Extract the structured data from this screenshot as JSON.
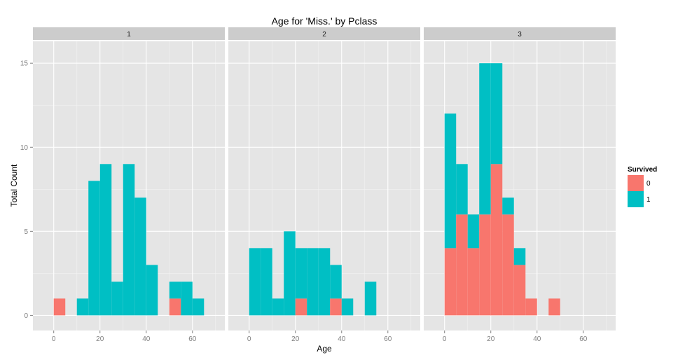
{
  "chart_data": {
    "type": "bar",
    "stacked": true,
    "title": "Age for 'Miss.' by Pclass",
    "xlabel": "Age",
    "ylabel": "Total Count",
    "xlim": [
      -9,
      74
    ],
    "ylim": [
      -0.9,
      16.3
    ],
    "xticks": [
      0,
      20,
      40,
      60
    ],
    "yticks": [
      0,
      5,
      10,
      15
    ],
    "bin_width": 5,
    "grid": true,
    "legend_position": "right",
    "legend": {
      "title": "Survived",
      "entries": [
        {
          "label": "0",
          "color": "#F8766D"
        },
        {
          "label": "1",
          "color": "#00BFC4"
        }
      ]
    },
    "panels": [
      {
        "label": "1",
        "bins": [
          {
            "start": 0,
            "died": 1,
            "survived": 0
          },
          {
            "start": 10,
            "died": 0,
            "survived": 1
          },
          {
            "start": 15,
            "died": 0,
            "survived": 8
          },
          {
            "start": 20,
            "died": 0,
            "survived": 9
          },
          {
            "start": 25,
            "died": 0,
            "survived": 2
          },
          {
            "start": 30,
            "died": 0,
            "survived": 9
          },
          {
            "start": 35,
            "died": 0,
            "survived": 7
          },
          {
            "start": 40,
            "died": 0,
            "survived": 3
          },
          {
            "start": 50,
            "died": 1,
            "survived": 1
          },
          {
            "start": 55,
            "died": 0,
            "survived": 2
          },
          {
            "start": 60,
            "died": 0,
            "survived": 1
          }
        ]
      },
      {
        "label": "2",
        "bins": [
          {
            "start": 0,
            "died": 0,
            "survived": 4
          },
          {
            "start": 5,
            "died": 0,
            "survived": 4
          },
          {
            "start": 10,
            "died": 0,
            "survived": 1
          },
          {
            "start": 15,
            "died": 0,
            "survived": 5
          },
          {
            "start": 20,
            "died": 1,
            "survived": 3
          },
          {
            "start": 25,
            "died": 0,
            "survived": 4
          },
          {
            "start": 30,
            "died": 0,
            "survived": 4
          },
          {
            "start": 35,
            "died": 1,
            "survived": 2
          },
          {
            "start": 40,
            "died": 0,
            "survived": 1
          },
          {
            "start": 50,
            "died": 0,
            "survived": 2
          }
        ]
      },
      {
        "label": "3",
        "bins": [
          {
            "start": 0,
            "died": 4,
            "survived": 8
          },
          {
            "start": 5,
            "died": 6,
            "survived": 3
          },
          {
            "start": 10,
            "died": 4,
            "survived": 2
          },
          {
            "start": 15,
            "died": 6,
            "survived": 9
          },
          {
            "start": 20,
            "died": 9,
            "survived": 6
          },
          {
            "start": 25,
            "died": 6,
            "survived": 1
          },
          {
            "start": 30,
            "died": 3,
            "survived": 1
          },
          {
            "start": 35,
            "died": 1,
            "survived": 0
          },
          {
            "start": 45,
            "died": 1,
            "survived": 0
          }
        ]
      }
    ]
  }
}
